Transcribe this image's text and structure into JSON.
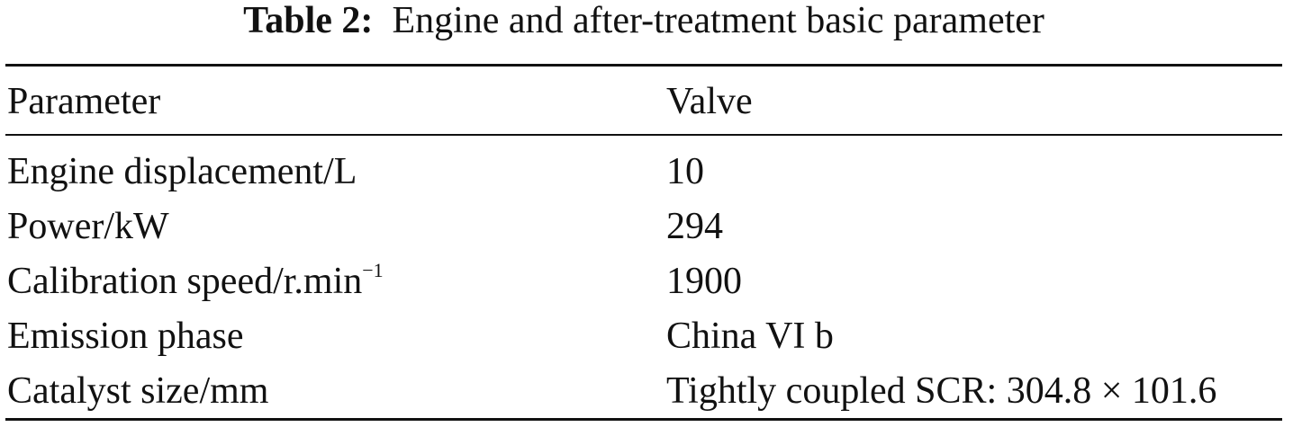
{
  "caption": {
    "label": "Table 2:",
    "text": "Engine and after-treatment basic parameter"
  },
  "table": {
    "header": [
      "Parameter",
      "Valve"
    ],
    "rows": [
      [
        {
          "text": "Engine displacement/L"
        },
        "10"
      ],
      [
        {
          "text": "Power/kW"
        },
        "294"
      ],
      [
        {
          "text": "Calibration speed/r.min",
          "superscript": "−1"
        },
        "1900"
      ],
      [
        {
          "text": "Emission phase"
        },
        "China VI b"
      ],
      [
        {
          "text": "Catalyst size/mm"
        },
        "Tightly coupled SCR: 304.8 × 101.6"
      ]
    ]
  }
}
